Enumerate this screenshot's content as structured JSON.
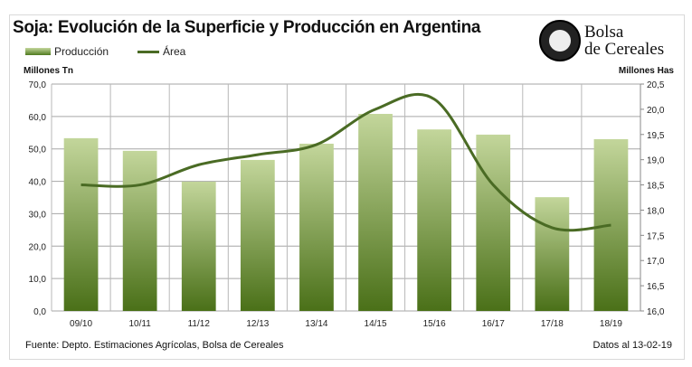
{
  "chart_data": {
    "type": "bar+line",
    "title": "Soja: Evolución de la Superficie y Producción en Argentina",
    "categories": [
      "09/10",
      "10/11",
      "11/12",
      "12/13",
      "13/14",
      "14/15",
      "15/16",
      "16/17",
      "17/18",
      "18/19"
    ],
    "series": [
      {
        "name": "Producción",
        "type": "bar",
        "axis": "left",
        "values": [
          53.3,
          49.4,
          39.9,
          46.6,
          51.6,
          60.8,
          56.0,
          54.4,
          35.1,
          53.0
        ]
      },
      {
        "name": "Área",
        "type": "line",
        "axis": "right",
        "values": [
          18.5,
          18.5,
          18.9,
          19.1,
          19.3,
          20.0,
          20.2,
          18.5,
          17.65,
          17.7
        ]
      }
    ],
    "ylabel": "Millones Tn",
    "y2label": "Millones Has",
    "ylim": [
      0,
      70
    ],
    "y2lim": [
      16,
      20.5
    ],
    "yticks": [
      "0,0",
      "10,0",
      "20,0",
      "30,0",
      "40,0",
      "50,0",
      "60,0",
      "70,0"
    ],
    "y2ticks": [
      "16,0",
      "16,5",
      "17,0",
      "17,5",
      "18,0",
      "18,5",
      "19,0",
      "19,5",
      "20,0",
      "20,5"
    ],
    "grid": true,
    "legend": "top-left",
    "colors": {
      "bar_top": "#c3d69b",
      "bar_bottom": "#4a7018",
      "line": "#4a6b24"
    }
  },
  "source": "Fuente: Depto. Estimaciones Agrícolas, Bolsa de Cereales",
  "date": "Datos al 13-02-19",
  "logo": {
    "line1": "Bolsa",
    "line2": "de Cereales"
  }
}
